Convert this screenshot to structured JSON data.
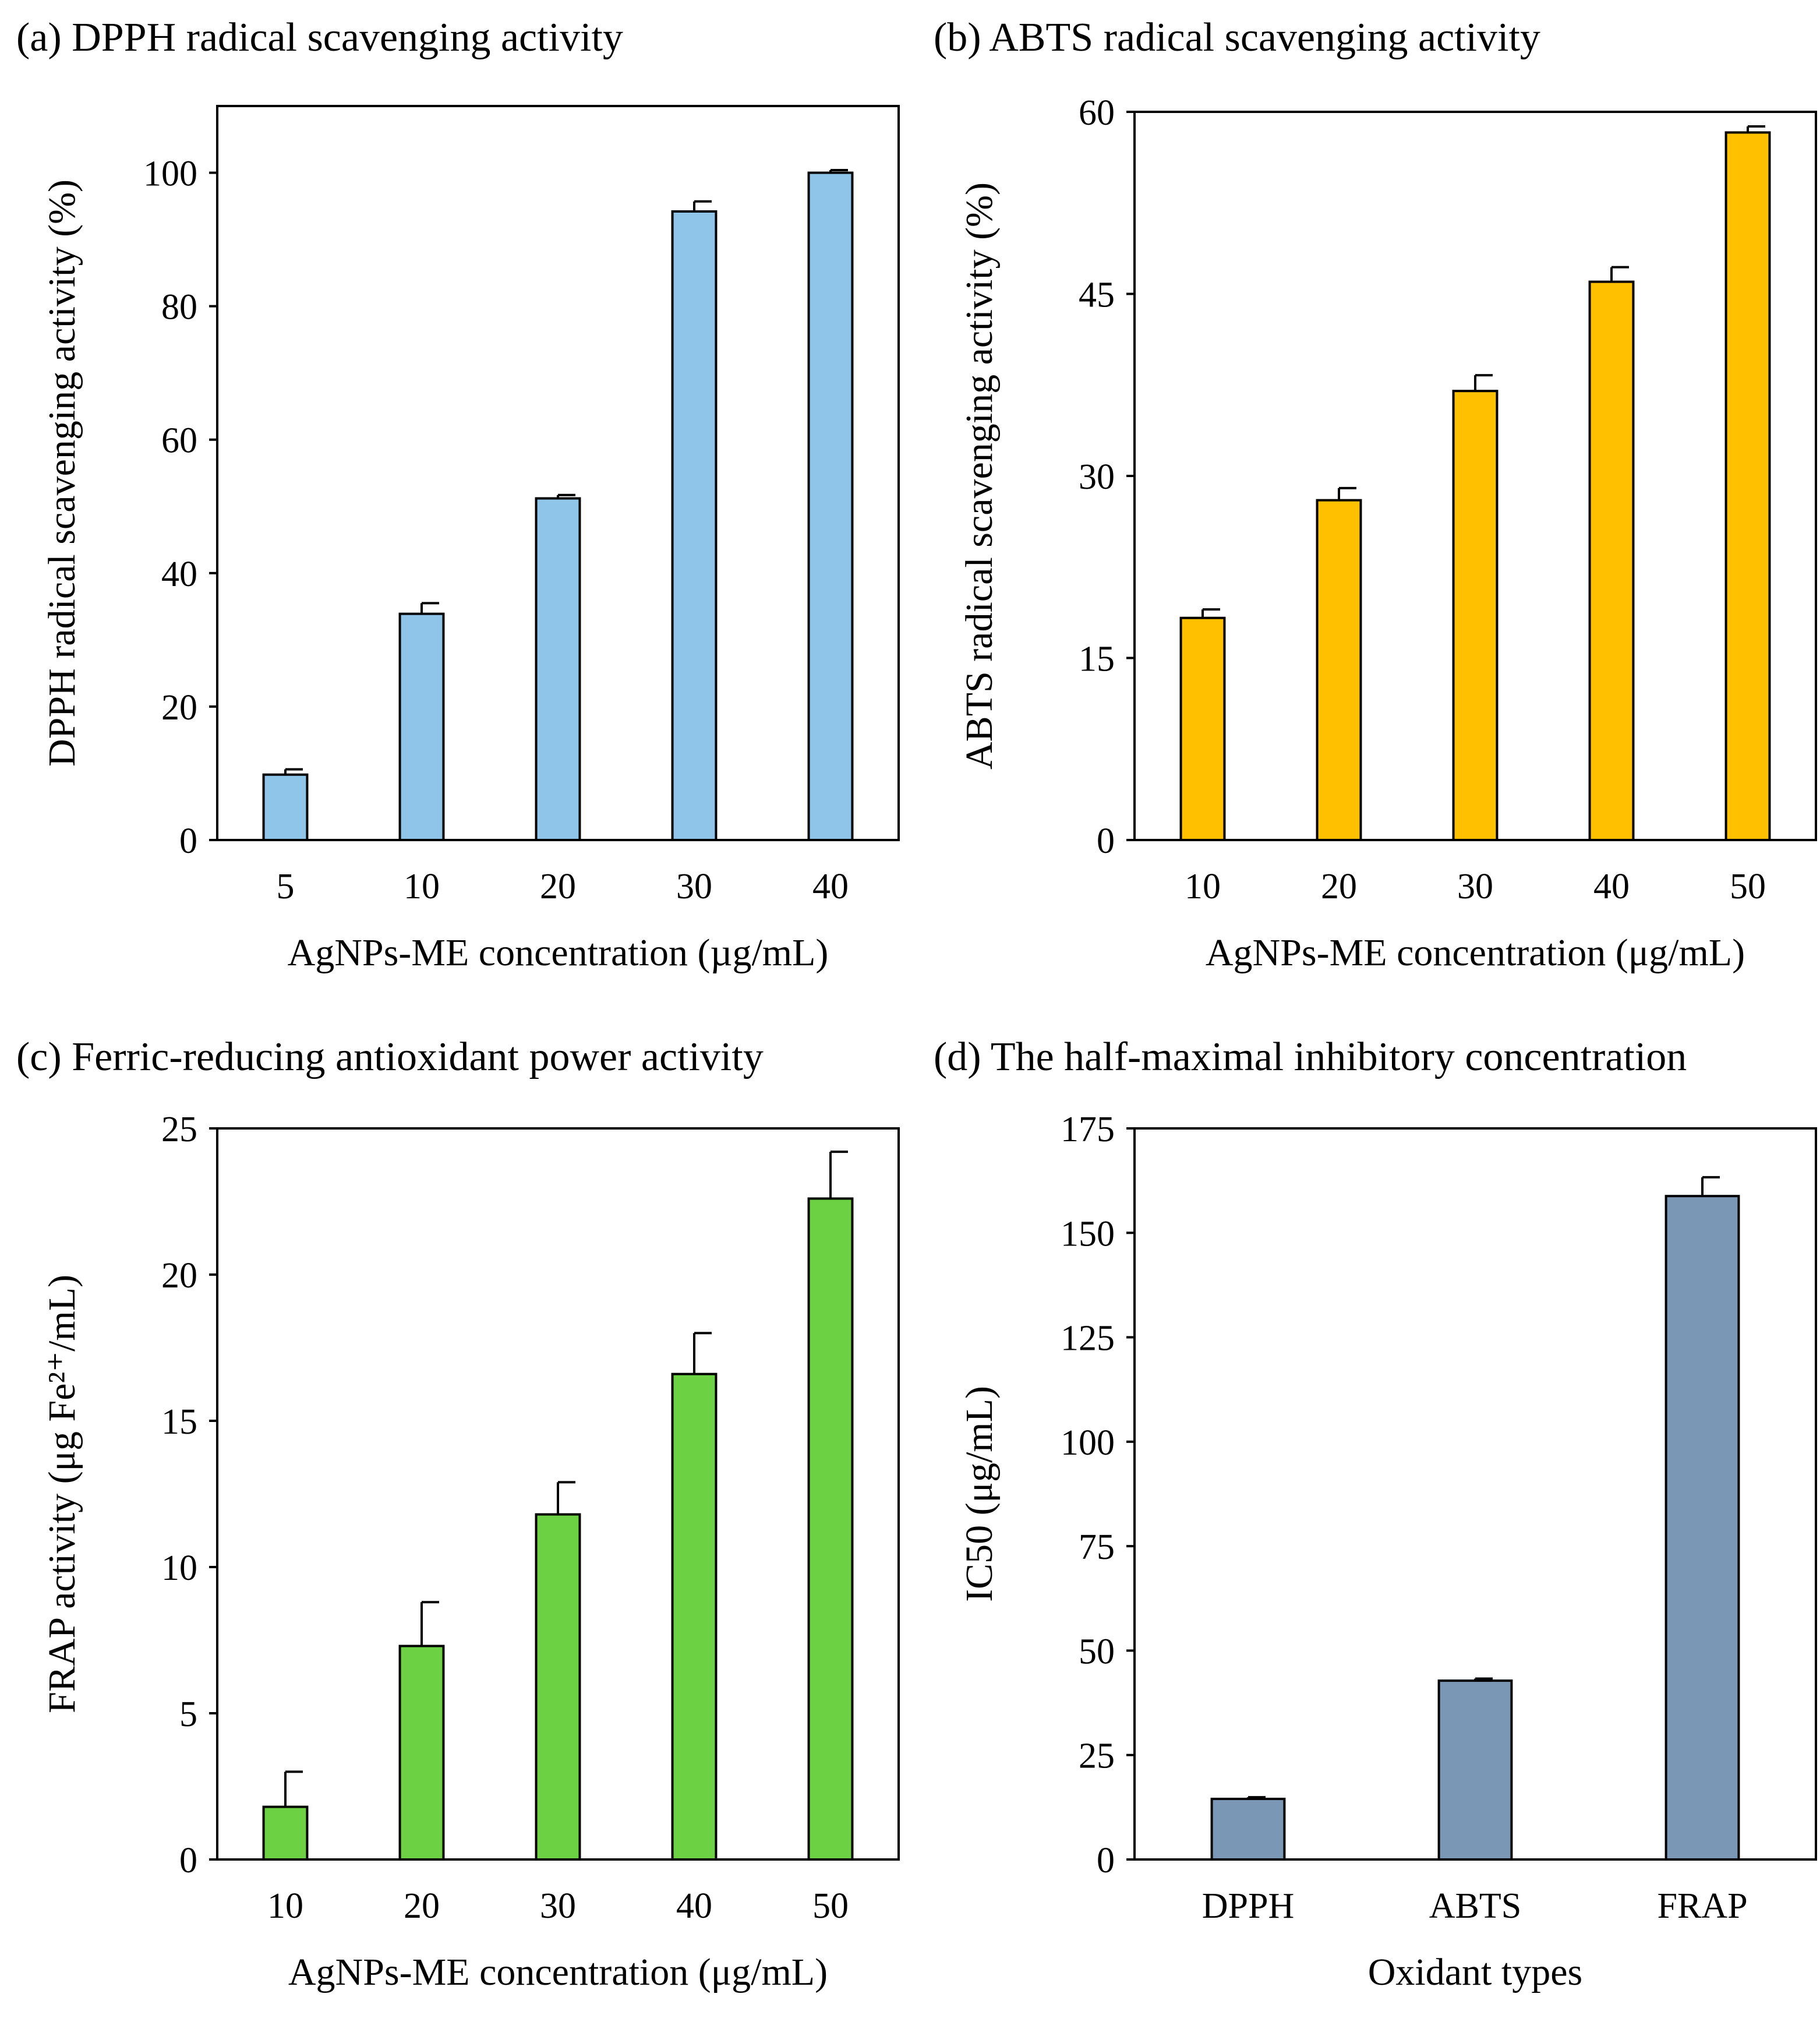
{
  "chart_data": [
    {
      "type": "bar",
      "title": "(a) DPPH radical scavenging activity",
      "xlabel": "AgNPs-ME concentration (µg/mL)",
      "ylabel": "DPPH radical scavenging activity (%)",
      "categories": [
        "5",
        "10",
        "20",
        "30",
        "40"
      ],
      "values": [
        9.8,
        33.9,
        51.2,
        94.2,
        100.0
      ],
      "errors": [
        0.8,
        1.6,
        0.5,
        1.5,
        0.4
      ],
      "ylim": [
        0,
        110
      ],
      "yticks": [
        0,
        20,
        40,
        60,
        80,
        100
      ],
      "color": "#8EC5E8",
      "grid": false
    },
    {
      "type": "bar",
      "title": "(b) ABTS radical scavenging activity",
      "xlabel": "AgNPs-ME concentration (μg/mL)",
      "ylabel": "ABTS radical scavenging activity (%)",
      "categories": [
        "10",
        "20",
        "30",
        "40",
        "50"
      ],
      "values": [
        18.3,
        28.0,
        37.0,
        46.0,
        58.3
      ],
      "errors": [
        0.7,
        1.0,
        1.3,
        1.2,
        0.5
      ],
      "ylim": [
        0,
        60
      ],
      "yticks": [
        0,
        15,
        30,
        45,
        60
      ],
      "color": "#FFC000",
      "grid": false
    },
    {
      "type": "bar",
      "title": "(c) Ferric-reducing antioxidant power activity",
      "xlabel": "AgNPs-ME concentration (μg/mL)",
      "ylabel": "FRAP activity (μg Fe²⁺/mL)",
      "categories": [
        "10",
        "20",
        "30",
        "40",
        "50"
      ],
      "values": [
        1.8,
        7.3,
        11.8,
        16.6,
        22.6
      ],
      "errors": [
        1.2,
        1.5,
        1.1,
        1.4,
        1.6
      ],
      "ylim": [
        0,
        25
      ],
      "yticks": [
        0,
        5,
        10,
        15,
        20,
        25
      ],
      "color": "#6DD144",
      "grid": false
    },
    {
      "type": "bar",
      "title": "(d) The half-maximal inhibitory concentration",
      "xlabel": "Oxidant types",
      "ylabel": "IC50 (μg/mL)",
      "categories": [
        "DPPH",
        "ABTS",
        "FRAP"
      ],
      "values": [
        14.5,
        42.8,
        158.8
      ],
      "errors": [
        0.4,
        0.5,
        4.5
      ],
      "ylim": [
        0,
        175
      ],
      "yticks": [
        0,
        25,
        50,
        75,
        100,
        125,
        150,
        175
      ],
      "color": "#7A97B5",
      "grid": false
    }
  ]
}
